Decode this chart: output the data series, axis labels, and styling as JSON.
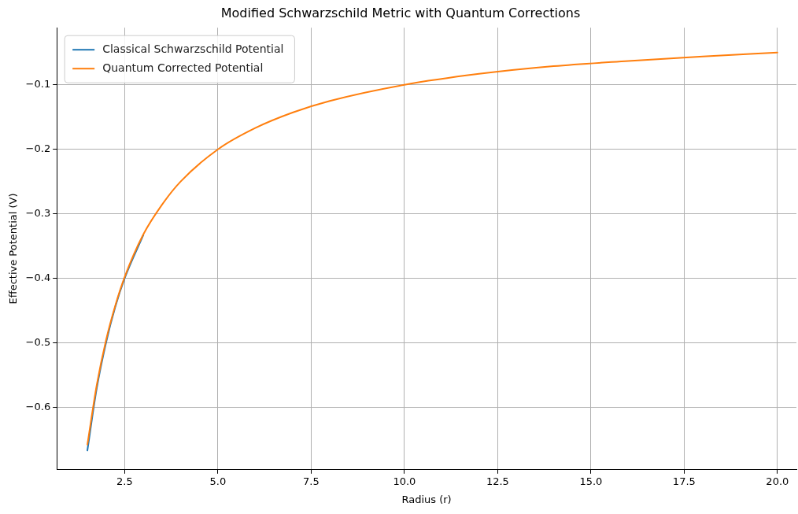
{
  "chart_data": {
    "type": "line",
    "title": "Modified Schwarzschild Metric with Quantum Corrections",
    "xlabel": "Radius (r)",
    "ylabel": "Effective Potential (V)",
    "x": [
      1.5,
      1.75,
      2,
      2.25,
      2.5,
      3,
      3.5,
      4,
      5,
      6,
      7,
      8,
      10,
      12,
      14,
      16,
      18,
      20
    ],
    "series": [
      {
        "name": "Classical Schwarzschild Potential",
        "color": "#1f77b4",
        "values": [
          -0.667,
          -0.571,
          -0.5,
          -0.444,
          -0.4,
          -0.333,
          null,
          null,
          null,
          null,
          null,
          null,
          null,
          null,
          null,
          null,
          null,
          null
        ]
      },
      {
        "name": "Quantum Corrected Potential",
        "color": "#ff7f0e",
        "values": [
          -0.658,
          -0.566,
          -0.496,
          -0.442,
          -0.398,
          -0.332,
          -0.286,
          -0.25,
          -0.2,
          -0.167,
          -0.143,
          -0.125,
          -0.1,
          -0.083,
          -0.071,
          -0.063,
          -0.056,
          -0.05
        ]
      }
    ],
    "xlim": [
      0.68,
      20.51
    ],
    "xticks": [
      {
        "value": 2.5,
        "label": "2.5"
      },
      {
        "value": 5,
        "label": "5.0"
      },
      {
        "value": 7.5,
        "label": "7.5"
      },
      {
        "value": 10,
        "label": "10.0"
      },
      {
        "value": 12.5,
        "label": "12.5"
      },
      {
        "value": 15,
        "label": "15.0"
      },
      {
        "value": 17.5,
        "label": "17.5"
      },
      {
        "value": 20,
        "label": "20.0"
      }
    ],
    "ylim": [
      -0.697,
      -0.0114
    ],
    "yticks": [
      {
        "value": -0.6,
        "label": "−0.6"
      },
      {
        "value": -0.5,
        "label": "−0.5"
      },
      {
        "value": -0.4,
        "label": "−0.4"
      },
      {
        "value": -0.3,
        "label": "−0.3"
      },
      {
        "value": -0.2,
        "label": "−0.2"
      },
      {
        "value": -0.1,
        "label": "−0.1"
      }
    ],
    "grid": true,
    "legend": "top left",
    "marker": "none",
    "line_style": "solid"
  }
}
